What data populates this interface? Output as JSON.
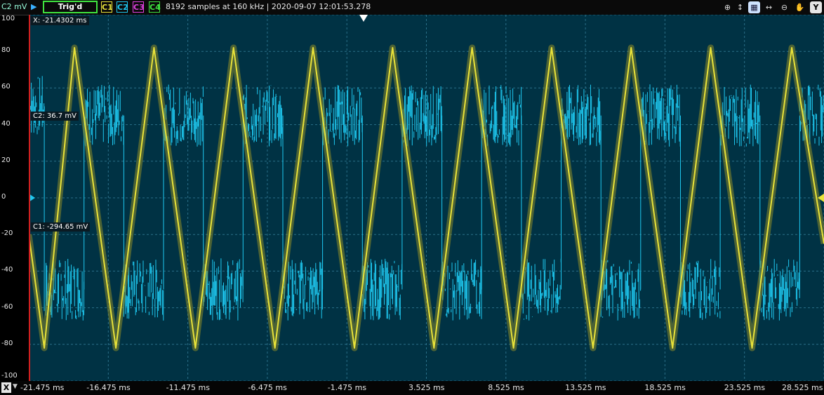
{
  "toolbar": {
    "unit_label": "C2 mV",
    "trigger_status": "Trig'd",
    "channels": [
      {
        "label": "C1",
        "color": "#e8e23a"
      },
      {
        "label": "C2",
        "color": "#1ec8f0"
      },
      {
        "label": "C3",
        "color": "#e040e0"
      },
      {
        "label": "C4",
        "color": "#3fe33f"
      }
    ],
    "acquisition_info": "8192 samples at 160 kHz | 2020-09-07 12:01:53.278",
    "tools": [
      "zoom-in-icon",
      "zoom-fit-icon",
      "zoom-box-icon",
      "zoom-x-icon",
      "zoom-out-icon",
      "pan-icon",
      "y-axis-icon"
    ],
    "y_button": "Y"
  },
  "readouts": {
    "x_cursor": "X: -21.4302 ms",
    "c2_cursor": "C2: 36.7 mV",
    "c1_cursor": "C1: -294.65 mV"
  },
  "x_axis_button": "X",
  "colors": {
    "plot_bg": "#003244",
    "grid": "#2a6f88",
    "c1": "#e8e23a",
    "c2": "#1ec8f0"
  },
  "chart_data": {
    "type": "line",
    "xlabel": "",
    "ylabel": "C2 mV",
    "x_unit": "ms",
    "xlim": [
      -21.475,
      28.525
    ],
    "ylim": [
      -100,
      100
    ],
    "y_ticks": [
      100,
      80,
      60,
      40,
      20,
      0,
      -20,
      -40,
      -60,
      -80,
      -100
    ],
    "x_ticks": [
      "-21.475 ms",
      "-16.475 ms",
      "-11.475 ms",
      "-6.475 ms",
      "-1.475 ms",
      "3.525 ms",
      "8.525 ms",
      "13.525 ms",
      "18.525 ms",
      "23.525 ms",
      "28.525 ms"
    ],
    "series": [
      {
        "name": "C1",
        "shape": "triangle",
        "x": [
          -21.475,
          -20.5,
          -18.6,
          -16.0,
          -13.6,
          -11.0,
          -8.6,
          -6.0,
          -3.6,
          -1.0,
          1.4,
          4.0,
          6.4,
          9.0,
          11.4,
          14.0,
          16.4,
          19.0,
          21.4,
          24.0,
          26.5,
          28.525
        ],
        "y": [
          -20,
          -82,
          82,
          -82,
          82,
          -82,
          82,
          -82,
          82,
          -82,
          82,
          -82,
          82,
          -82,
          82,
          -82,
          82,
          -82,
          82,
          -82,
          82,
          -25
        ]
      },
      {
        "name": "C2",
        "shape": "noisy square",
        "x": [
          -21.475,
          -20.5,
          -20.5,
          -18.0,
          -18.0,
          -15.5,
          -15.5,
          -13.0,
          -13.0,
          -10.5,
          -10.5,
          -8.0,
          -8.0,
          -5.5,
          -5.5,
          -3.0,
          -3.0,
          -0.5,
          -0.5,
          2.0,
          2.0,
          4.5,
          4.5,
          7.0,
          7.0,
          9.5,
          9.5,
          12.0,
          12.0,
          14.5,
          14.5,
          17.0,
          17.0,
          19.5,
          19.5,
          22.0,
          22.0,
          24.5,
          24.5,
          27.0,
          27.0,
          28.525
        ],
        "y": [
          50,
          50,
          -50,
          -50,
          45,
          45,
          -50,
          -50,
          45,
          45,
          -50,
          -50,
          45,
          45,
          -50,
          -50,
          45,
          45,
          -50,
          -50,
          45,
          45,
          -50,
          -50,
          45,
          45,
          -50,
          -50,
          45,
          45,
          -50,
          -50,
          45,
          45,
          -50,
          -50,
          45,
          45,
          -50,
          -50,
          45,
          45
        ]
      }
    ]
  }
}
